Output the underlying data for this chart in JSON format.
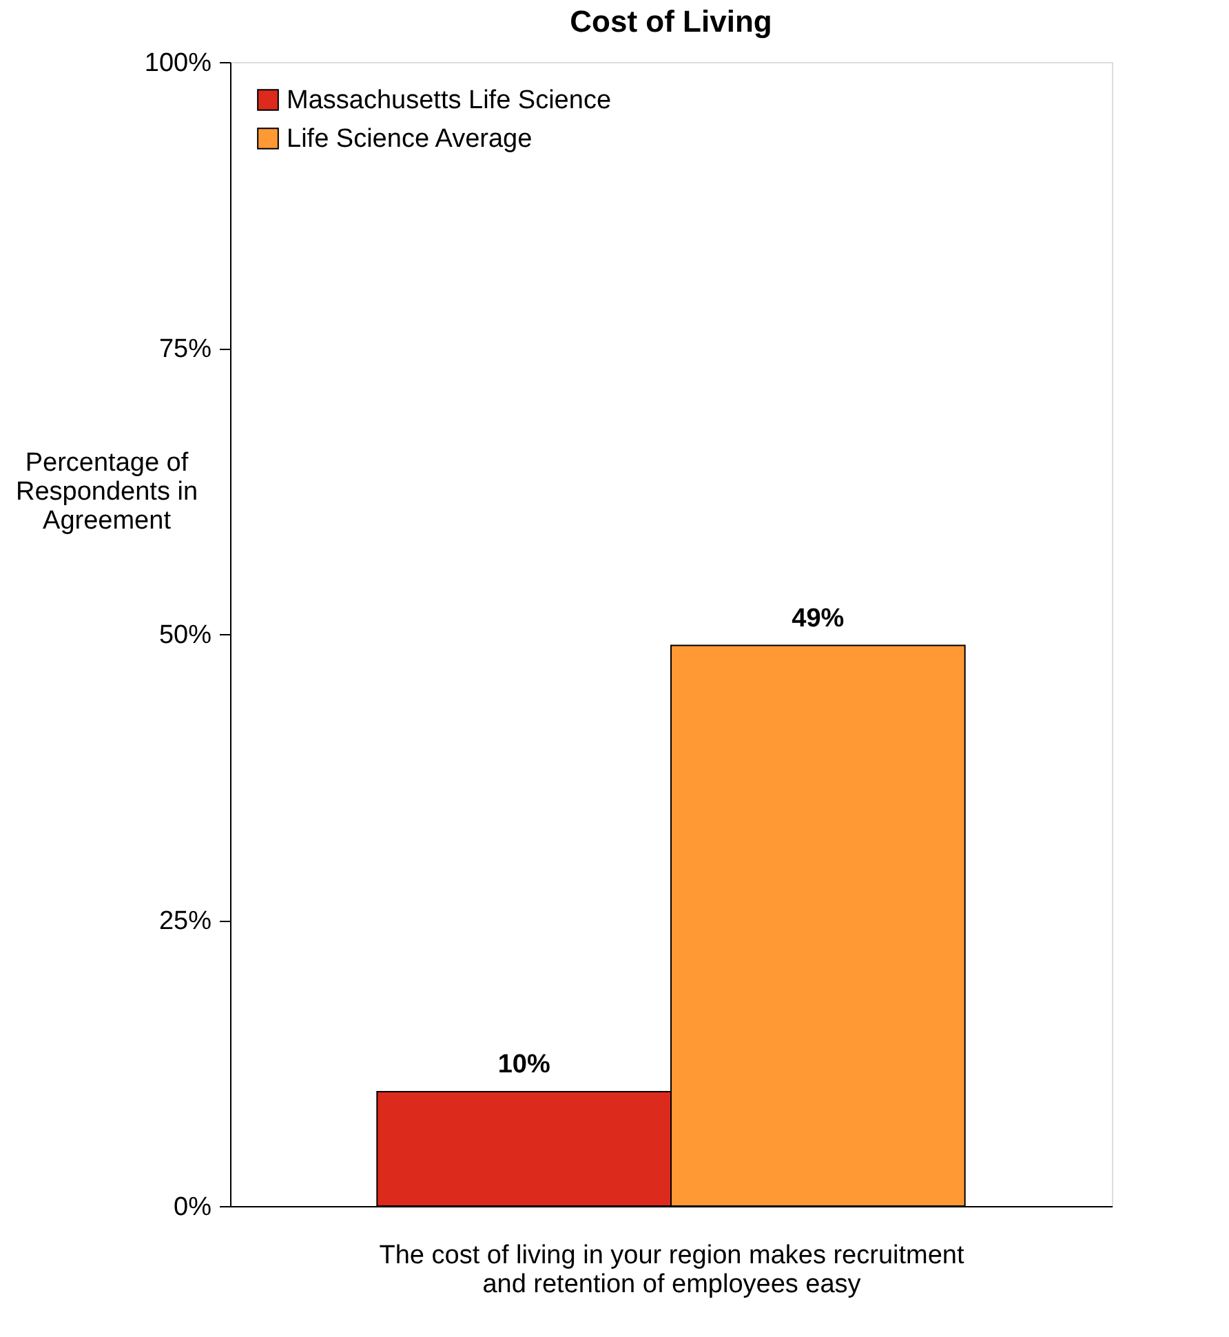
{
  "chart_data": {
    "type": "bar",
    "title": "Cost of Living",
    "ylabel": "Percentage of Respondents in Agreement",
    "xlabel": "The cost of living in your region makes recruitment and retention of employees easy",
    "categories": [
      null
    ],
    "series": [
      {
        "name": "Massachusetts Life Science",
        "color": "#dc2a1c",
        "values": [
          10
        ]
      },
      {
        "name": "Life Science Average",
        "color": "#ff9933",
        "values": [
          49
        ]
      }
    ],
    "value_labels": [
      [
        "10%"
      ],
      [
        "49%"
      ]
    ],
    "ylim": [
      0,
      100
    ],
    "yticks": [
      {
        "value": 0,
        "label": "0%"
      },
      {
        "value": 25,
        "label": "25%"
      },
      {
        "value": 50,
        "label": "50%"
      },
      {
        "value": 75,
        "label": "75%"
      },
      {
        "value": 100,
        "label": "100%"
      }
    ],
    "legend": "top left",
    "grid": false
  }
}
